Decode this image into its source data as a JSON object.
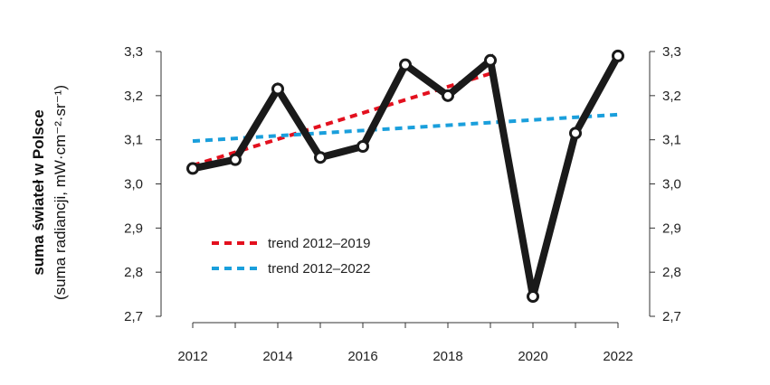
{
  "chart_data": {
    "type": "line",
    "ylabel": "suma świateł w Polsce",
    "ylabel_secondary": "(suma radiancji, mW·cm⁻²·sr⁻¹)",
    "x": [
      2012,
      2013,
      2014,
      2015,
      2016,
      2017,
      2018,
      2019,
      2020,
      2021,
      2022
    ],
    "x_tick_labels": [
      "2012",
      "2014",
      "2016",
      "2018",
      "2020",
      "2022"
    ],
    "y_tick_labels": [
      "2,7",
      "2,8",
      "2,9",
      "3,0",
      "3,1",
      "3,2",
      "3,3"
    ],
    "ylim": [
      2.7,
      3.3
    ],
    "xlim": [
      2012,
      2022
    ],
    "grid": false,
    "right_axis_mirrors_left": true,
    "series": [
      {
        "values": [
          3.035,
          3.055,
          3.215,
          3.06,
          3.085,
          3.27,
          3.2,
          3.28,
          2.745,
          3.115,
          3.29
        ],
        "color": "#1a1a1a"
      }
    ],
    "trendlines": [
      {
        "name": "trend 2012–2019",
        "x": [
          2012,
          2019
        ],
        "y": [
          3.042,
          3.25
        ],
        "color": "#e3101e"
      },
      {
        "name": "trend 2012–2022",
        "x": [
          2012,
          2022
        ],
        "y": [
          3.097,
          3.157
        ],
        "color": "#1a9fdc"
      }
    ],
    "legend_position": "lower-left"
  }
}
